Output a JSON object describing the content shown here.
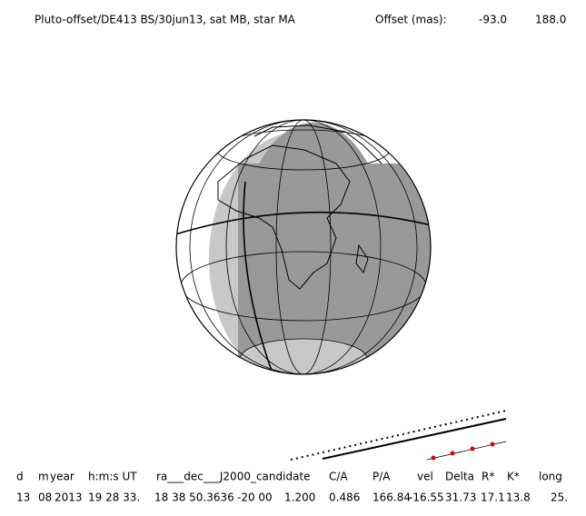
{
  "header": {
    "title": "Pluto-offset/DE413 BS/30jun13, sat MB, star MA",
    "offset_label": "Offset (mas):",
    "offset_values": [
      "-93.0",
      "188.0"
    ]
  },
  "table": {
    "headers": [
      "d",
      "m",
      "year",
      "h:m:s UT",
      "ra___dec___J2000_candidate",
      "C/A",
      "P/A",
      "vel",
      "Delta",
      "R*",
      "K*",
      "long"
    ],
    "values": [
      "13",
      "08",
      "2013",
      "19 28 33.",
      "18 38 50.3636",
      "-20 00",
      "1.200",
      "0.486",
      "166.84",
      "-16.55",
      "31.73",
      "17.1",
      "13.8",
      "25."
    ]
  }
}
